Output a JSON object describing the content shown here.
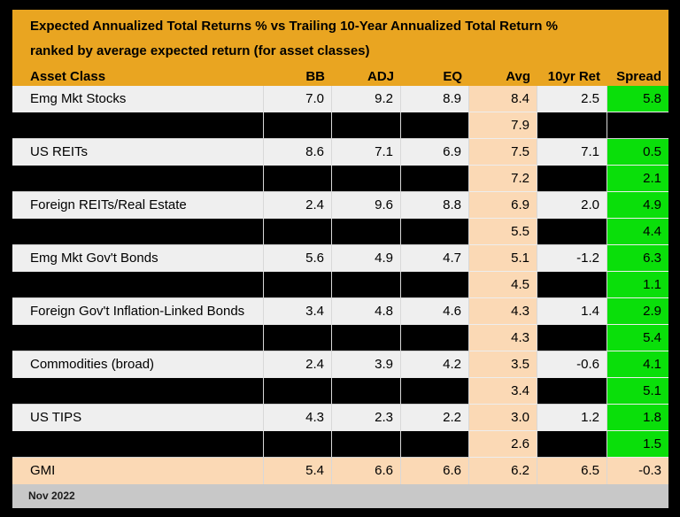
{
  "header": {
    "title_line1": "Expected Annualized Total Returns % vs Trailing 10-Year Annualized Total Return %",
    "title_line2": "ranked by average expected return (for asset classes)"
  },
  "footer": {
    "label": "Nov 2022"
  },
  "colors": {
    "frame": "#000000",
    "header_bg": "#E9A521",
    "row_bg": "#EFEFEF",
    "redacted_bg": "#000000",
    "avg_col_bg": "#FBD9B5",
    "spread_pos_bg": "#0ADF0A",
    "total_row_bg": "#FBD9B5",
    "footer_bg": "#C8C8C8"
  },
  "chart_data": {
    "type": "table",
    "title": "Expected Annualized Total Returns % vs Trailing 10-Year Annualized Total Return %",
    "subtitle": "ranked by average expected return (for asset classes)",
    "columns": [
      "Asset Class",
      "BB",
      "ADJ",
      "EQ",
      "Avg",
      "10yr Ret",
      "Spread"
    ],
    "rows": [
      {
        "asset": "Emg Mkt Stocks",
        "bb": "7.0",
        "adj": "9.2",
        "eq": "8.9",
        "avg": "8.4",
        "ret10": "2.5",
        "spread": "5.8",
        "variant": "normal"
      },
      {
        "asset": "",
        "bb": "",
        "adj": "",
        "eq": "",
        "avg": "7.9",
        "ret10": "",
        "spread": "",
        "variant": "redacted"
      },
      {
        "asset": "US REITs",
        "bb": "8.6",
        "adj": "7.1",
        "eq": "6.9",
        "avg": "7.5",
        "ret10": "7.1",
        "spread": "0.5",
        "variant": "normal"
      },
      {
        "asset": "",
        "bb": "",
        "adj": "",
        "eq": "",
        "avg": "7.2",
        "ret10": "",
        "spread": "2.1",
        "variant": "redacted"
      },
      {
        "asset": "Foreign REITs/Real Estate",
        "bb": "2.4",
        "adj": "9.6",
        "eq": "8.8",
        "avg": "6.9",
        "ret10": "2.0",
        "spread": "4.9",
        "variant": "normal"
      },
      {
        "asset": "",
        "bb": "",
        "adj": "",
        "eq": "",
        "avg": "5.5",
        "ret10": "",
        "spread": "4.4",
        "variant": "redacted"
      },
      {
        "asset": "Emg Mkt Gov't Bonds",
        "bb": "5.6",
        "adj": "4.9",
        "eq": "4.7",
        "avg": "5.1",
        "ret10": "-1.2",
        "spread": "6.3",
        "variant": "normal"
      },
      {
        "asset": "",
        "bb": "",
        "adj": "",
        "eq": "",
        "avg": "4.5",
        "ret10": "",
        "spread": "1.1",
        "variant": "redacted"
      },
      {
        "asset": "Foreign Gov't Inflation-Linked Bonds",
        "bb": "3.4",
        "adj": "4.8",
        "eq": "4.6",
        "avg": "4.3",
        "ret10": "1.4",
        "spread": "2.9",
        "variant": "normal"
      },
      {
        "asset": "",
        "bb": "",
        "adj": "",
        "eq": "",
        "avg": "4.3",
        "ret10": "",
        "spread": "5.4",
        "variant": "redacted"
      },
      {
        "asset": "Commodities (broad)",
        "bb": "2.4",
        "adj": "3.9",
        "eq": "4.2",
        "avg": "3.5",
        "ret10": "-0.6",
        "spread": "4.1",
        "variant": "normal"
      },
      {
        "asset": "",
        "bb": "",
        "adj": "",
        "eq": "",
        "avg": "3.4",
        "ret10": "",
        "spread": "5.1",
        "variant": "redacted"
      },
      {
        "asset": "US TIPS",
        "bb": "4.3",
        "adj": "2.3",
        "eq": "2.2",
        "avg": "3.0",
        "ret10": "1.2",
        "spread": "1.8",
        "variant": "normal"
      },
      {
        "asset": "",
        "bb": "",
        "adj": "",
        "eq": "",
        "avg": "2.6",
        "ret10": "",
        "spread": "1.5",
        "variant": "redacted"
      },
      {
        "asset": "GMI",
        "bb": "5.4",
        "adj": "6.6",
        "eq": "6.6",
        "avg": "6.2",
        "ret10": "6.5",
        "spread": "-0.3",
        "variant": "total"
      }
    ]
  }
}
